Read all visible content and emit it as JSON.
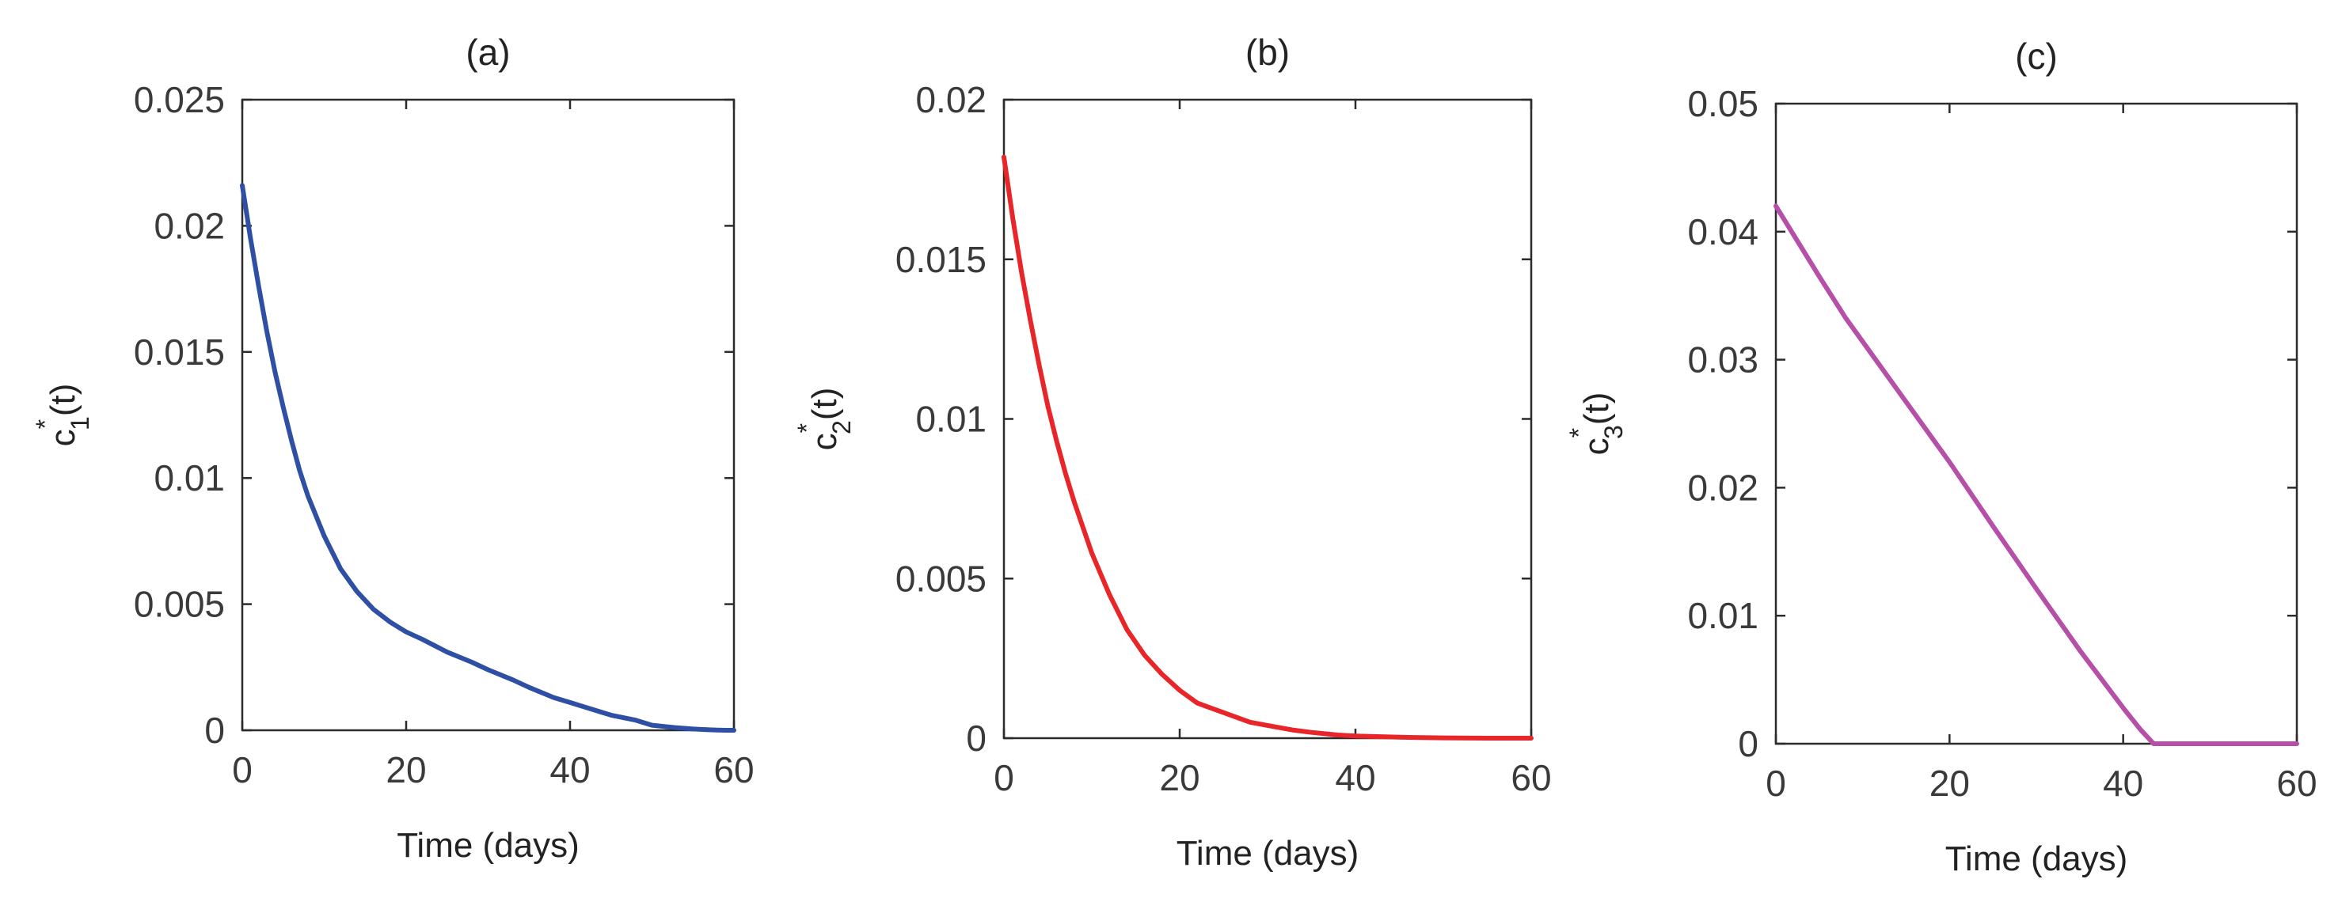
{
  "chart_data": [
    {
      "type": "line",
      "title": "(a)",
      "xlabel": "Time (days)",
      "ylabel": {
        "base": "c",
        "sup": "*",
        "sub": "1",
        "rest": "(t)"
      },
      "xlim": [
        0,
        60
      ],
      "ylim": [
        0,
        0.025
      ],
      "xticks": [
        0,
        20,
        40,
        60
      ],
      "xtick_labels": [
        "0",
        "20",
        "40",
        "60"
      ],
      "yticks": [
        0,
        0.005,
        0.01,
        0.015,
        0.02,
        0.025
      ],
      "ytick_labels": [
        "0",
        "0.005",
        "0.01",
        "0.015",
        "0.02",
        "0.025"
      ],
      "grid": false,
      "color": "#2e4fa3",
      "series": [
        {
          "x": [
            0,
            1,
            2,
            3,
            4,
            5,
            6,
            7,
            8,
            10,
            12,
            14,
            16,
            18,
            20,
            22,
            25,
            28,
            30,
            33,
            35,
            38,
            40,
            43,
            45,
            48,
            50,
            53,
            55,
            57,
            58,
            59,
            60
          ],
          "y": [
            0.0216,
            0.0195,
            0.0176,
            0.0158,
            0.0142,
            0.0128,
            0.0115,
            0.0103,
            0.0093,
            0.0077,
            0.0064,
            0.0055,
            0.0048,
            0.0043,
            0.0039,
            0.0036,
            0.0031,
            0.0027,
            0.0024,
            0.002,
            0.0017,
            0.0013,
            0.0011,
            0.0008,
            0.0006,
            0.0004,
            0.0002,
            0.0001,
            5e-05,
            2e-05,
            1e-05,
            0.0,
            0.0
          ]
        }
      ]
    },
    {
      "type": "line",
      "title": "(b)",
      "xlabel": "Time (days)",
      "ylabel": {
        "base": "c",
        "sup": "*",
        "sub": "2",
        "rest": "(t)"
      },
      "xlim": [
        0,
        60
      ],
      "ylim": [
        0,
        0.02
      ],
      "xticks": [
        0,
        20,
        40,
        60
      ],
      "xtick_labels": [
        "0",
        "20",
        "40",
        "60"
      ],
      "yticks": [
        0,
        0.005,
        0.01,
        0.015,
        0.02
      ],
      "ytick_labels": [
        "0",
        "0.005",
        "0.01",
        "0.015",
        "0.02"
      ],
      "grid": false,
      "color": "#e8262a",
      "series": [
        {
          "x": [
            0,
            1,
            2,
            3,
            4,
            5,
            6,
            7,
            8,
            9,
            10,
            12,
            14,
            16,
            18,
            20,
            22,
            25,
            28,
            30,
            33,
            35,
            38,
            40,
            45,
            50,
            55,
            60
          ],
          "y": [
            0.0182,
            0.0163,
            0.0146,
            0.0131,
            0.0117,
            0.0104,
            0.0093,
            0.0083,
            0.0074,
            0.0066,
            0.0058,
            0.0045,
            0.0034,
            0.0026,
            0.002,
            0.0015,
            0.0011,
            0.0008,
            0.0005,
            0.0004,
            0.00025,
            0.00018,
            0.0001,
            7e-05,
            3e-05,
            1e-05,
            0.0,
            0.0
          ]
        }
      ]
    },
    {
      "type": "line",
      "title": "(c)",
      "xlabel": "Time (days)",
      "ylabel": {
        "base": "c",
        "sup": "*",
        "sub": "3",
        "rest": "(t)"
      },
      "xlim": [
        0,
        60
      ],
      "ylim": [
        0,
        0.05
      ],
      "xticks": [
        0,
        20,
        40,
        60
      ],
      "xtick_labels": [
        "0",
        "20",
        "40",
        "60"
      ],
      "yticks": [
        0,
        0.01,
        0.02,
        0.03,
        0.04,
        0.05
      ],
      "ytick_labels": [
        "0",
        "0.01",
        "0.02",
        "0.03",
        "0.04",
        "0.05"
      ],
      "grid": false,
      "color": "#b64fa8",
      "series": [
        {
          "x": [
            0,
            2,
            5,
            8,
            10,
            15,
            20,
            25,
            30,
            35,
            40,
            42,
            43.5,
            45,
            50,
            55,
            60
          ],
          "y": [
            0.042,
            0.0398,
            0.0365,
            0.0333,
            0.0314,
            0.0267,
            0.022,
            0.017,
            0.0121,
            0.0073,
            0.0028,
            0.0011,
            0.0,
            0.0,
            0.0,
            0.0,
            0.0
          ]
        }
      ]
    }
  ]
}
